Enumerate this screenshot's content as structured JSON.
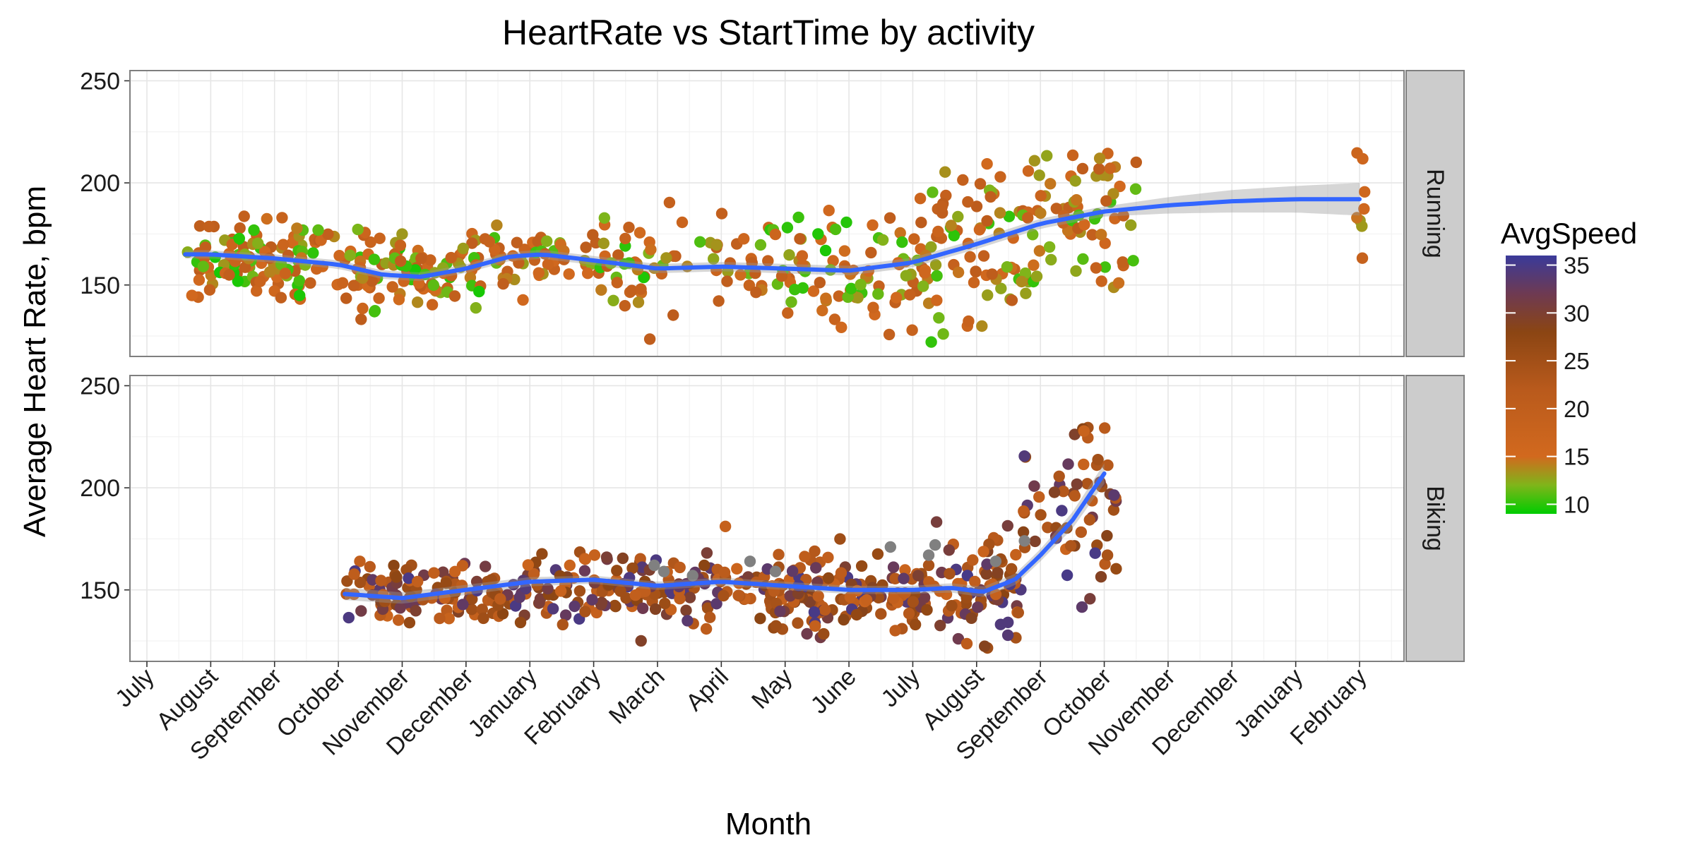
{
  "chart_data": {
    "type": "scatter",
    "title": "HeartRate vs StartTime by activity",
    "xlabel": "Month",
    "ylabel": "Average Heart Rate, bpm",
    "x_tick_labels": [
      "July",
      "August",
      "September",
      "October",
      "November",
      "December",
      "January",
      "February",
      "March",
      "April",
      "May",
      "June",
      "July",
      "August",
      "September",
      "October",
      "November",
      "December",
      "January",
      "February"
    ],
    "y_ticks": [
      150,
      200,
      250
    ],
    "y_tick_labels": [
      "150",
      "200",
      "250"
    ],
    "ylim": [
      115,
      255
    ],
    "xlim_months": [
      -0.3,
      19.8
    ],
    "grid": true,
    "legend": {
      "title": "AvgSpeed",
      "position": "right",
      "ticks": [
        10,
        15,
        20,
        25,
        30,
        35
      ],
      "tick_labels": [
        "10",
        "15",
        "20",
        "25",
        "30",
        "35"
      ],
      "range": [
        9,
        36
      ],
      "gradient": [
        {
          "value": 9,
          "color": "#00cc00"
        },
        {
          "value": 12,
          "color": "#7fb51a"
        },
        {
          "value": 15,
          "color": "#d2691e"
        },
        {
          "value": 22,
          "color": "#b95a1c"
        },
        {
          "value": 28,
          "color": "#8b4513"
        },
        {
          "value": 32,
          "color": "#6e3a52"
        },
        {
          "value": 36,
          "color": "#3a3a9a"
        }
      ]
    },
    "facets": [
      {
        "label": "Running",
        "speed_range": [
          9.5,
          21
        ],
        "x_range": [
          0.6,
          15.8
        ],
        "point_count": 600,
        "seed": 11,
        "smooth": [
          {
            "x": 0.6,
            "y": 165
          },
          {
            "x": 1.0,
            "y": 165
          },
          {
            "x": 2.0,
            "y": 163
          },
          {
            "x": 3.0,
            "y": 160
          },
          {
            "x": 3.7,
            "y": 155
          },
          {
            "x": 4.3,
            "y": 154
          },
          {
            "x": 5.0,
            "y": 158
          },
          {
            "x": 5.7,
            "y": 164
          },
          {
            "x": 6.2,
            "y": 165
          },
          {
            "x": 7.0,
            "y": 162
          },
          {
            "x": 8.0,
            "y": 158
          },
          {
            "x": 9.0,
            "y": 159
          },
          {
            "x": 10.0,
            "y": 158
          },
          {
            "x": 11.0,
            "y": 157
          },
          {
            "x": 12.0,
            "y": 161
          },
          {
            "x": 13.0,
            "y": 170
          },
          {
            "x": 14.0,
            "y": 180
          },
          {
            "x": 15.0,
            "y": 186
          },
          {
            "x": 16.0,
            "y": 189
          },
          {
            "x": 17.0,
            "y": 191
          },
          {
            "x": 18.0,
            "y": 192
          },
          {
            "x": 19.0,
            "y": 192
          }
        ],
        "band_width": [
          {
            "x": 0.6,
            "w": 2.0
          },
          {
            "x": 15.0,
            "w": 2.5
          },
          {
            "x": 16.0,
            "w": 4.0
          },
          {
            "x": 17.0,
            "w": 5.5
          },
          {
            "x": 18.0,
            "w": 6.5
          },
          {
            "x": 19.0,
            "w": 8.0
          }
        ],
        "segments": [
          {
            "x0": 0.6,
            "x1": 3.0,
            "n": 120,
            "yc": 162,
            "ys": 9,
            "ylo": 138,
            "yhi": 184
          },
          {
            "x0": 3.0,
            "x1": 5.2,
            "n": 100,
            "yc": 156,
            "ys": 10,
            "ylo": 133,
            "yhi": 180
          },
          {
            "x0": 5.2,
            "x1": 7.2,
            "n": 60,
            "yc": 163,
            "ys": 10,
            "ylo": 142,
            "yhi": 188
          },
          {
            "x0": 7.2,
            "x1": 10.5,
            "n": 90,
            "yc": 159,
            "ys": 12,
            "ylo": 122,
            "yhi": 202
          },
          {
            "x0": 10.5,
            "x1": 12.3,
            "n": 70,
            "yc": 160,
            "ys": 15,
            "ylo": 122,
            "yhi": 207
          },
          {
            "x0": 12.3,
            "x1": 14.0,
            "n": 80,
            "yc": 168,
            "ys": 20,
            "ylo": 123,
            "yhi": 238
          },
          {
            "x0": 14.0,
            "x1": 15.6,
            "n": 60,
            "yc": 185,
            "ys": 18,
            "ylo": 148,
            "yhi": 248
          },
          {
            "x0": 18.9,
            "x1": 19.1,
            "n": 8,
            "yc": 190,
            "ys": 18,
            "ylo": 163,
            "yhi": 216
          }
        ]
      },
      {
        "label": "Biking",
        "speed_range": [
          17,
          35
        ],
        "x_range": [
          3.1,
          15.2
        ],
        "point_count": 560,
        "seed": 29,
        "smooth": [
          {
            "x": 3.1,
            "y": 148
          },
          {
            "x": 4.0,
            "y": 146
          },
          {
            "x": 5.0,
            "y": 150
          },
          {
            "x": 6.0,
            "y": 154
          },
          {
            "x": 7.0,
            "y": 155
          },
          {
            "x": 8.0,
            "y": 152
          },
          {
            "x": 9.0,
            "y": 154
          },
          {
            "x": 10.0,
            "y": 152
          },
          {
            "x": 11.0,
            "y": 150
          },
          {
            "x": 12.0,
            "y": 150
          },
          {
            "x": 12.6,
            "y": 151
          },
          {
            "x": 13.1,
            "y": 149
          },
          {
            "x": 13.6,
            "y": 155
          },
          {
            "x": 14.0,
            "y": 167
          },
          {
            "x": 14.5,
            "y": 184
          },
          {
            "x": 15.0,
            "y": 207
          }
        ],
        "band_width": [
          {
            "x": 3.1,
            "w": 3.0
          },
          {
            "x": 7.0,
            "w": 2.0
          },
          {
            "x": 12.0,
            "w": 2.0
          },
          {
            "x": 14.0,
            "w": 3.0
          },
          {
            "x": 15.0,
            "w": 5.0
          }
        ],
        "segments": [
          {
            "x0": 3.1,
            "x1": 5.8,
            "n": 110,
            "yc": 148,
            "ys": 7,
            "ylo": 125,
            "yhi": 178
          },
          {
            "x0": 5.8,
            "x1": 9.8,
            "n": 170,
            "yc": 150,
            "ys": 9,
            "ylo": 124,
            "yhi": 199
          },
          {
            "x0": 9.8,
            "x1": 12.2,
            "n": 140,
            "yc": 148,
            "ys": 10,
            "ylo": 121,
            "yhi": 188
          },
          {
            "x0": 12.2,
            "x1": 13.7,
            "n": 80,
            "yc": 152,
            "ys": 13,
            "ylo": 121,
            "yhi": 201
          },
          {
            "x0": 13.7,
            "x1": 15.2,
            "n": 60,
            "yc": 190,
            "ys": 20,
            "ylo": 140,
            "yhi": 230
          }
        ],
        "gray_points": [
          {
            "x": 7.95,
            "y": 162
          },
          {
            "x": 8.1,
            "y": 159
          },
          {
            "x": 9.45,
            "y": 164
          },
          {
            "x": 9.85,
            "y": 159
          },
          {
            "x": 11.65,
            "y": 171
          },
          {
            "x": 12.25,
            "y": 167
          },
          {
            "x": 12.35,
            "y": 172
          },
          {
            "x": 13.3,
            "y": 164
          },
          {
            "x": 13.75,
            "y": 174
          },
          {
            "x": 8.55,
            "y": 157
          }
        ]
      }
    ]
  }
}
